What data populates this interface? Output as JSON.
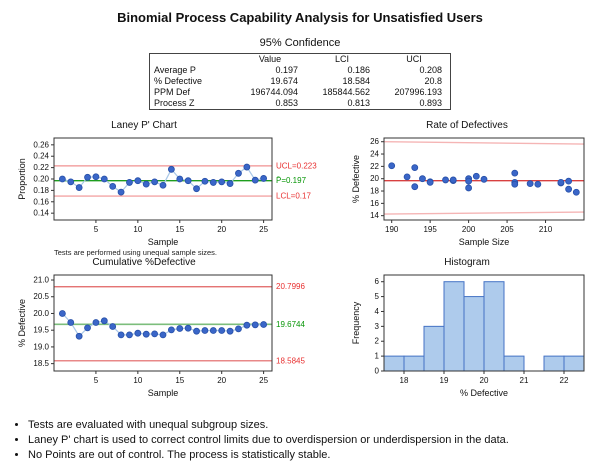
{
  "title": "Binomial Process Capability Analysis for Unsatisfied Users",
  "confidence_table": {
    "title": "95% Confidence",
    "headers": [
      "",
      "Value",
      "LCI",
      "UCI"
    ],
    "rows": [
      [
        "Average P",
        "0.197",
        "0.186",
        "0.208"
      ],
      [
        "% Defective",
        "19.674",
        "18.584",
        "20.8"
      ],
      [
        "PPM Def",
        "196744.094",
        "185844.562",
        "207996.193"
      ],
      [
        "Process Z",
        "0.853",
        "0.813",
        "0.893"
      ]
    ]
  },
  "colors": {
    "point_blue": "#3A66C8",
    "point_edge": "#2750A8",
    "connector_blue": "#A9C7E8",
    "limit_salmon": "#F09090",
    "limit_pink": "#F5B5B5",
    "center_green": "#1E9E1E",
    "center_green_light": "#7CBE7C",
    "center_red": "#D84040",
    "limit_red_thin": "#E06060",
    "label_red": "#E83030",
    "label_green": "#089608",
    "hist_fill": "#AECBEC",
    "hist_stroke": "#4472C4",
    "axis": "#333333"
  },
  "chart_data": [
    {
      "type": "line",
      "title": "Laney P' Chart",
      "xlabel": "Sample",
      "ylabel": "Proportion",
      "footnote": "Tests are performed using unequal sample sizes.",
      "xlim": [
        0,
        26
      ],
      "ylim": [
        0.128,
        0.272
      ],
      "xticks": [
        5,
        10,
        15,
        20,
        25
      ],
      "yticks": [
        0.14,
        0.16,
        0.18,
        0.2,
        0.22,
        0.24,
        0.26
      ],
      "ytick_labels": [
        "0.14",
        "0.16",
        "0.18",
        "0.20",
        "0.22",
        "0.24",
        "0.26"
      ],
      "connect": true,
      "values": [
        0.2,
        0.195,
        0.185,
        0.203,
        0.204,
        0.2,
        0.187,
        0.177,
        0.194,
        0.197,
        0.191,
        0.195,
        0.189,
        0.217,
        0.2,
        0.197,
        0.183,
        0.196,
        0.194,
        0.195,
        0.192,
        0.21,
        0.221,
        0.198,
        0.201
      ],
      "lines": [
        {
          "name": "ucl-line",
          "y": 0.223,
          "color": "limit_salmon",
          "width": 1.2
        },
        {
          "name": "center-line",
          "y": 0.197,
          "color": "center_green",
          "width": 1.4
        },
        {
          "name": "lcl-line",
          "y": 0.17,
          "color": "limit_salmon",
          "width": 1.2
        }
      ],
      "annotations": [
        {
          "text": "UCL=0.223",
          "y": 0.223,
          "color": "label_red"
        },
        {
          "text": "P̄=0.197",
          "y": 0.197,
          "color": "label_green"
        },
        {
          "text": "LCL=0.17",
          "y": 0.17,
          "color": "label_red"
        }
      ]
    },
    {
      "type": "scatter",
      "title": "Rate of Defectives",
      "xlabel": "Sample Size",
      "ylabel": "% Defective",
      "xlim": [
        189,
        215
      ],
      "ylim": [
        13.3,
        26.6
      ],
      "xticks": [
        190,
        195,
        200,
        205,
        210
      ],
      "yticks": [
        14,
        16,
        18,
        20,
        22,
        24,
        26
      ],
      "points": [
        [
          190,
          22.1
        ],
        [
          192,
          20.3
        ],
        [
          193,
          21.8
        ],
        [
          193,
          18.7
        ],
        [
          194,
          20.0
        ],
        [
          195,
          19.5
        ],
        [
          195,
          19.4
        ],
        [
          197,
          19.8
        ],
        [
          198,
          19.7
        ],
        [
          198,
          19.8
        ],
        [
          200,
          20.0
        ],
        [
          200,
          19.6
        ],
        [
          200,
          18.5
        ],
        [
          201,
          20.4
        ],
        [
          202,
          19.9
        ],
        [
          206,
          20.9
        ],
        [
          206,
          19.4
        ],
        [
          206,
          19.1
        ],
        [
          208,
          19.2
        ],
        [
          209,
          19.1
        ],
        [
          212,
          19.3
        ],
        [
          212,
          19.4
        ],
        [
          213,
          19.6
        ],
        [
          213,
          18.3
        ],
        [
          214,
          17.8
        ]
      ],
      "lines": [
        {
          "name": "ucl-curve",
          "seg": [
            [
              189,
              26.0
            ],
            [
              215,
              25.62
            ]
          ],
          "color": "limit_pink",
          "width": 1.4
        },
        {
          "name": "center-line",
          "y": 19.674,
          "color": "center_red",
          "width": 1.4
        },
        {
          "name": "lcl-curve",
          "seg": [
            [
              189,
              14.27
            ],
            [
              215,
              14.58
            ]
          ],
          "color": "limit_pink",
          "width": 1.4
        }
      ]
    },
    {
      "type": "line",
      "title": "Cumulative %Defective",
      "xlabel": "Sample",
      "ylabel": "% Defective",
      "xlim": [
        0,
        26
      ],
      "ylim": [
        18.28,
        21.15
      ],
      "xticks": [
        5,
        10,
        15,
        20,
        25
      ],
      "yticks": [
        18.5,
        19.0,
        19.5,
        20.0,
        20.5,
        21.0
      ],
      "ytick_labels": [
        "18.5",
        "19.0",
        "19.5",
        "20.0",
        "20.5",
        "21.0"
      ],
      "connect": true,
      "values": [
        20.0,
        19.73,
        19.32,
        19.57,
        19.73,
        19.78,
        19.61,
        19.36,
        19.36,
        19.41,
        19.38,
        19.39,
        19.36,
        19.51,
        19.55,
        19.56,
        19.47,
        19.49,
        19.49,
        19.49,
        19.47,
        19.54,
        19.65,
        19.66,
        19.67
      ],
      "lines": [
        {
          "name": "uci-line",
          "y": 20.7996,
          "color": "limit_red_thin",
          "width": 1.2
        },
        {
          "name": "center-line",
          "y": 19.6744,
          "color": "center_green_light",
          "width": 1.6
        },
        {
          "name": "lci-line",
          "y": 18.5845,
          "color": "limit_red_thin",
          "width": 1.2
        }
      ],
      "annotations": [
        {
          "text": "20.7996",
          "y": 20.7996,
          "color": "label_red"
        },
        {
          "text": "19.6744",
          "y": 19.6744,
          "color": "label_green"
        },
        {
          "text": "18.5845",
          "y": 18.5845,
          "color": "label_red"
        }
      ]
    },
    {
      "type": "bar",
      "title": "Histogram",
      "xlabel": "% Defective",
      "ylabel": "Frequency",
      "xlim": [
        17.5,
        22.5
      ],
      "ylim": [
        0,
        6.45
      ],
      "xticks": [
        18,
        19,
        20,
        21,
        22
      ],
      "yticks": [
        0,
        1,
        2,
        3,
        4,
        5,
        6
      ],
      "bin_start": 17.5,
      "bin_width": 0.5,
      "values": [
        1,
        1,
        3,
        6,
        5,
        6,
        1,
        0,
        1,
        1
      ]
    }
  ],
  "notes": [
    "Tests are evaluated with unequal subgroup sizes.",
    "Laney P' chart is used to correct control limits due to overdispersion or underdispersion in the data.",
    "No Points are out of control. The process is statistically stable."
  ]
}
